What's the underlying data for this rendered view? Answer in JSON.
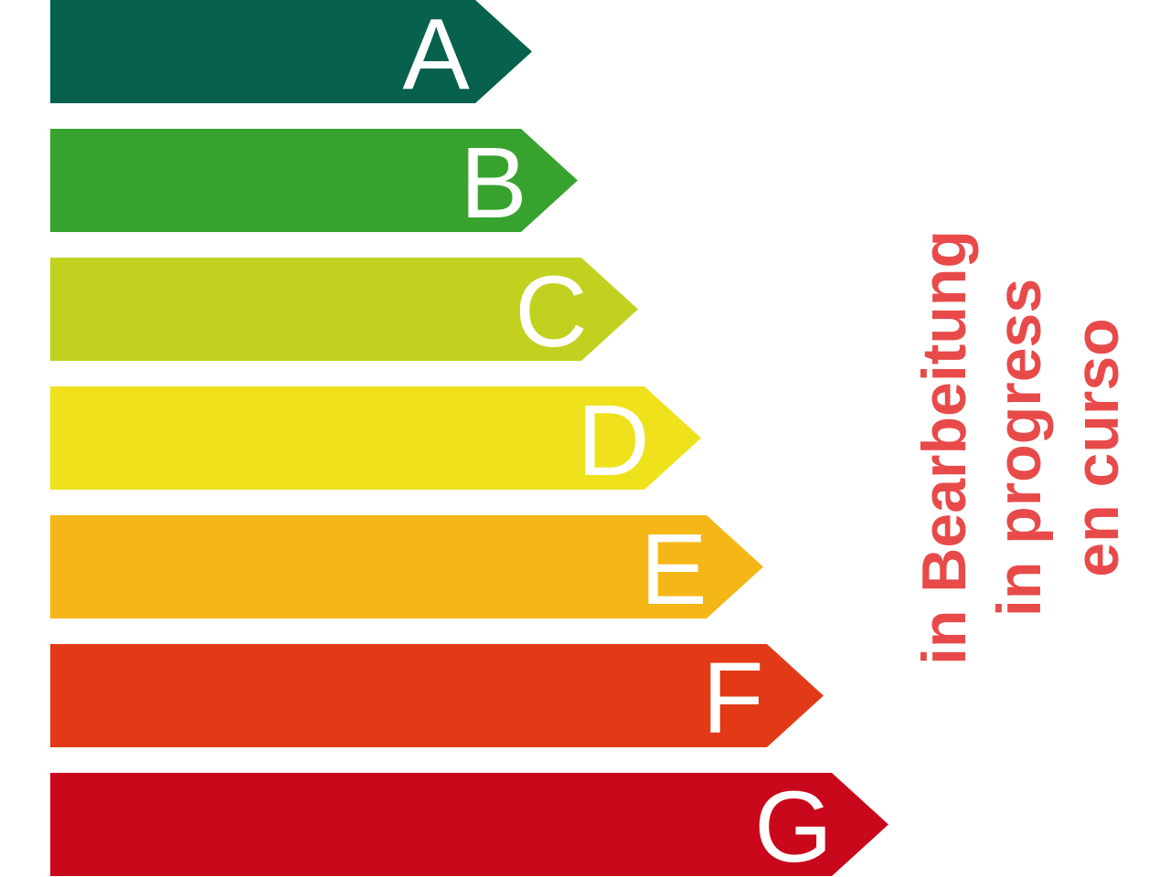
{
  "classes": [
    {
      "letter": "A",
      "color": "#07614c"
    },
    {
      "letter": "B",
      "color": "#38a22f"
    },
    {
      "letter": "C",
      "color": "#c2d11f"
    },
    {
      "letter": "D",
      "color": "#efe21c"
    },
    {
      "letter": "E",
      "color": "#f5b617"
    },
    {
      "letter": "F",
      "color": "#e23a17"
    },
    {
      "letter": "G",
      "color": "#c9081c"
    }
  ],
  "status": {
    "lines": [
      "in Bearbeitung",
      "in progress",
      "en curso"
    ],
    "color": "#e84a4a"
  }
}
